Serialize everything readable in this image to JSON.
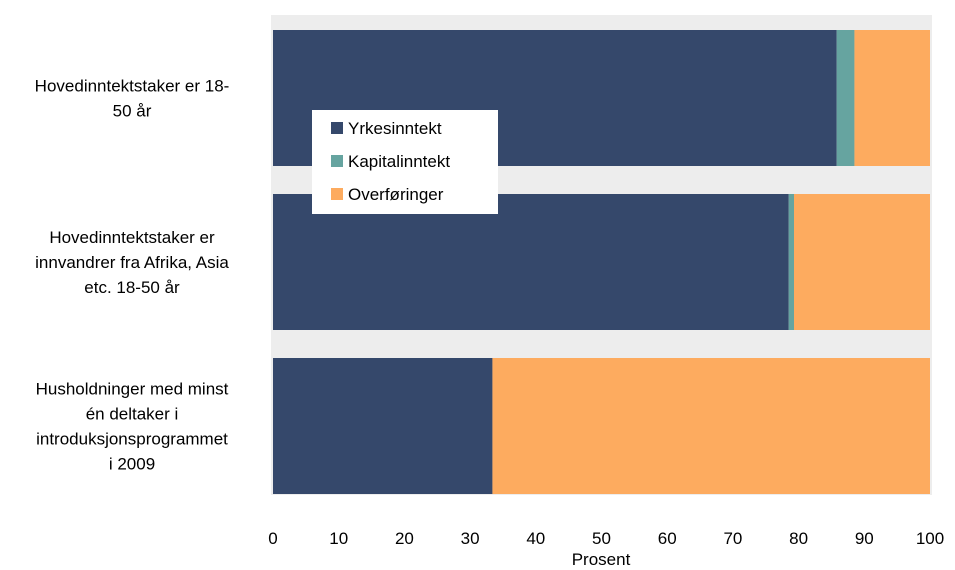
{
  "chart_data": {
    "type": "bar",
    "orientation": "horizontal",
    "stacked": true,
    "categories": [
      [
        "Hovedinntektstaker er 18-",
        "50 år"
      ],
      [
        "Hovedinntektstaker er",
        "innvandrer fra Afrika, Asia",
        "etc. 18-50 år"
      ],
      [
        "Husholdninger med minst",
        "én deltaker i",
        "introduksjonsprogrammet",
        "i 2009"
      ]
    ],
    "series": [
      {
        "name": "Yrkesinntekt",
        "color": "#35486B",
        "values": [
          85.8,
          78.5,
          33.4
        ]
      },
      {
        "name": "Kapitalinntekt",
        "color": "#66A4A0",
        "values": [
          2.7,
          0.8,
          0.0
        ]
      },
      {
        "name": "Overføringer",
        "color": "#FDAB5F",
        "values": [
          11.5,
          20.7,
          66.6
        ]
      }
    ],
    "xlim": [
      0,
      100
    ],
    "xticks": [
      "0",
      "10",
      "20",
      "30",
      "40",
      "50",
      "60",
      "70",
      "80",
      "90",
      "100"
    ],
    "xlabel": "Prosent",
    "legend_position": "upper-left inside plot",
    "grid": false,
    "background": "#ededed"
  }
}
